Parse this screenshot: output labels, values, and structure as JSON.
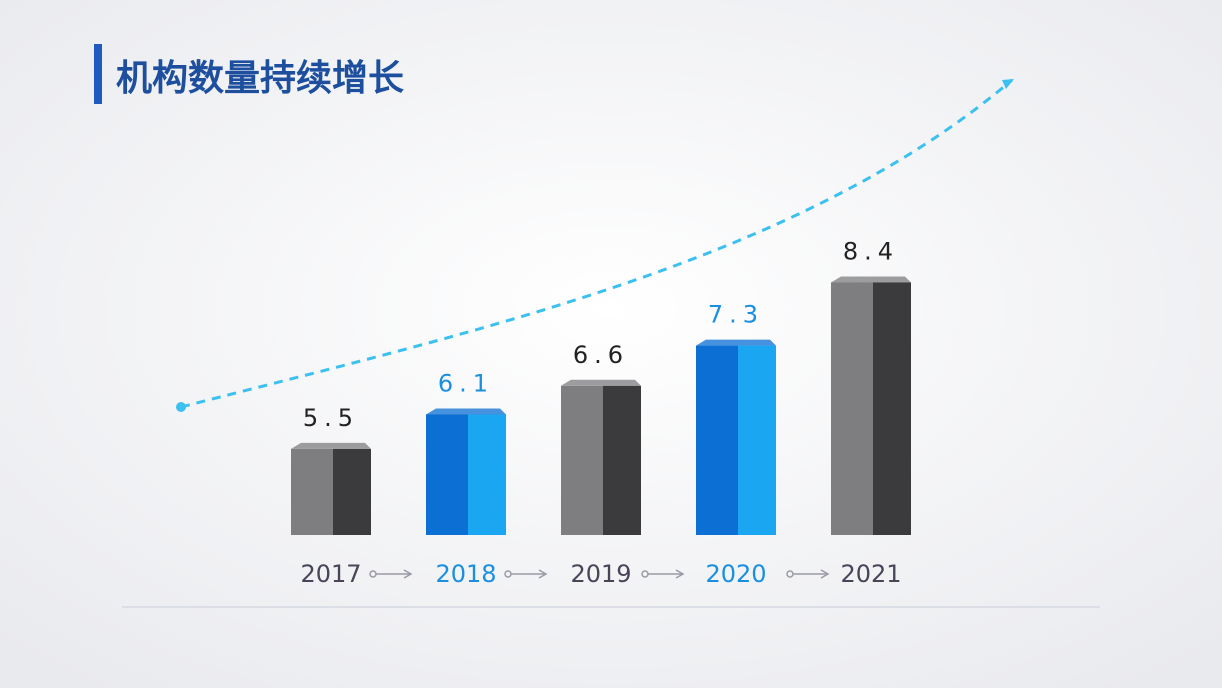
{
  "chart_data": {
    "type": "bar3d",
    "title": "机构数量持续增长",
    "categories": [
      "2017",
      "2018",
      "2019",
      "2020",
      "2021"
    ],
    "values": [
      5.5,
      6.1,
      6.6,
      7.3,
      8.4
    ],
    "colors": [
      "#7e7e80",
      "#0b6fd4",
      "#7e7e80",
      "#0b6fd4",
      "#7e7e80"
    ],
    "side_colors": [
      "#3b3b3d",
      "#1ba6f2",
      "#3b3b3d",
      "#1ba6f2",
      "#3b3b3d"
    ],
    "label_colors": [
      "#222222",
      "#1a8fe0",
      "#222222",
      "#1a8fe0",
      "#222222"
    ],
    "ylim": [
      4,
      9
    ]
  }
}
